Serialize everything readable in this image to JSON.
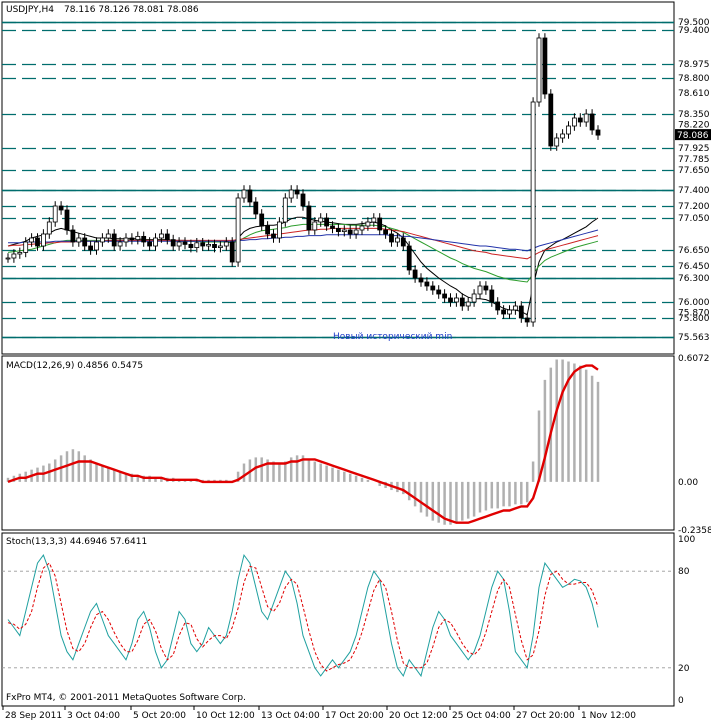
{
  "header": {
    "symbol": "USDJPY,H4",
    "ohlc": "78.116 78.126 78.081 78.086"
  },
  "annotation": "Новый исторический min",
  "footer": "FxPro MT4, © 2001-2011 MetaQuotes Software Corp.",
  "colors": {
    "level_line": "#006d6d",
    "candle": "#000000",
    "ma_fast": "#000000",
    "ma_green": "#2e9e2e",
    "ma_red": "#cc2222",
    "ma_blue": "#2233aa",
    "macd_hist": "#b0b0b0",
    "macd_signal": "#e00000",
    "stoch_main": "#20a0a0",
    "stoch_signal": "#e00000",
    "annotation": "#1e3cc8",
    "current_price_bg": "#000000"
  },
  "chart_data": [
    {
      "type": "line",
      "panel": "price",
      "title": "USDJPY,H4",
      "ylim": [
        75.4,
        79.6
      ],
      "price_levels": [
        79.5,
        79.4,
        78.975,
        78.8,
        78.35,
        77.925,
        77.65,
        77.4,
        77.2,
        77.05,
        76.65,
        76.45,
        76.3,
        76.0,
        75.8,
        75.563
      ],
      "y_tick_labels": [
        "79.500",
        "79.400",
        "78.975",
        "78.800",
        "78.610",
        "78.350",
        "78.220",
        "78.086",
        "77.925",
        "77.785",
        "77.650",
        "77.400",
        "77.200",
        "77.050",
        "76.650",
        "76.450",
        "76.300",
        "76.000",
        "75.870",
        "75.800",
        "75.563"
      ],
      "current_price": "78.086",
      "closes": [
        76.55,
        76.6,
        76.62,
        76.75,
        76.8,
        76.7,
        76.85,
        77.0,
        77.2,
        77.15,
        76.9,
        76.75,
        76.8,
        76.7,
        76.65,
        76.75,
        76.8,
        76.85,
        76.7,
        76.75,
        76.8,
        76.78,
        76.82,
        76.75,
        76.7,
        76.8,
        76.85,
        76.78,
        76.7,
        76.75,
        76.72,
        76.68,
        76.74,
        76.7,
        76.72,
        76.68,
        76.7,
        76.75,
        76.5,
        77.3,
        77.4,
        77.25,
        77.1,
        76.95,
        76.85,
        76.8,
        77.0,
        77.3,
        77.4,
        77.35,
        77.2,
        76.9,
        77.0,
        77.05,
        76.95,
        76.92,
        76.88,
        76.9,
        76.85,
        76.9,
        76.95,
        77.0,
        77.05,
        76.9,
        76.85,
        76.75,
        76.8,
        76.7,
        76.4,
        76.3,
        76.25,
        76.2,
        76.15,
        76.1,
        76.05,
        76.0,
        76.05,
        75.95,
        76.0,
        76.1,
        76.2,
        76.15,
        76.0,
        75.9,
        75.85,
        75.9,
        75.95,
        75.8,
        75.75,
        78.5,
        79.3,
        78.6,
        77.95,
        78.05,
        78.1,
        78.2,
        78.3,
        78.25,
        78.35,
        78.15,
        78.086
      ],
      "series": [
        {
          "name": "MA fast",
          "values": [
            76.7,
            76.72,
            76.74,
            76.76,
            76.8,
            76.82,
            76.84,
            76.86,
            76.9,
            76.92,
            76.9,
            76.88,
            76.86,
            76.84,
            76.82,
            76.8,
            76.8,
            76.8,
            76.79,
            76.79,
            76.79,
            76.79,
            76.79,
            76.78,
            76.78,
            76.78,
            76.78,
            76.78,
            76.77,
            76.77,
            76.77,
            76.76,
            76.76,
            76.76,
            76.75,
            76.75,
            76.75,
            76.75,
            76.74,
            76.8,
            76.88,
            76.92,
            76.94,
            76.95,
            76.96,
            76.96,
            76.97,
            77.0,
            77.04,
            77.06,
            77.06,
            77.04,
            77.02,
            77.01,
            77.0,
            76.99,
            76.98,
            76.97,
            76.97,
            76.97,
            76.98,
            76.99,
            77.0,
            76.98,
            76.95,
            76.9,
            76.86,
            76.8,
            76.7,
            76.6,
            76.5,
            76.42,
            76.36,
            76.3,
            76.25,
            76.2,
            76.16,
            76.1,
            76.06,
            76.04,
            76.04,
            76.03,
            76.0,
            75.96,
            75.92,
            75.9,
            75.9,
            75.88,
            75.84,
            76.2,
            76.5,
            76.65,
            76.7,
            76.75,
            76.78,
            76.82,
            76.86,
            76.9,
            76.94,
            77.0,
            77.05
          ]
        },
        {
          "name": "MA green",
          "values": [
            76.62,
            76.63,
            76.64,
            76.65,
            76.66,
            76.68,
            76.7,
            76.72,
            76.74,
            76.76,
            76.77,
            76.77,
            76.77,
            76.77,
            76.77,
            76.77,
            76.77,
            76.77,
            76.77,
            76.77,
            76.77,
            76.77,
            76.77,
            76.77,
            76.77,
            76.77,
            76.77,
            76.77,
            76.77,
            76.76,
            76.76,
            76.76,
            76.76,
            76.75,
            76.75,
            76.75,
            76.75,
            76.75,
            76.74,
            76.76,
            76.8,
            76.84,
            76.87,
            76.89,
            76.9,
            76.91,
            76.92,
            76.93,
            76.95,
            76.96,
            76.97,
            76.97,
            76.97,
            76.97,
            76.97,
            76.97,
            76.97,
            76.97,
            76.96,
            76.96,
            76.96,
            76.96,
            76.96,
            76.95,
            76.94,
            76.92,
            76.9,
            76.87,
            76.83,
            76.79,
            76.75,
            76.71,
            76.67,
            76.63,
            76.59,
            76.55,
            76.52,
            76.48,
            76.45,
            76.42,
            76.4,
            76.38,
            76.35,
            76.32,
            76.3,
            76.28,
            76.27,
            76.26,
            76.25,
            76.35,
            76.45,
            76.52,
            76.56,
            76.59,
            76.62,
            76.65,
            76.68,
            76.7,
            76.72,
            76.74,
            76.76
          ]
        },
        {
          "name": "MA red",
          "values": [
            76.7,
            76.71,
            76.71,
            76.72,
            76.72,
            76.73,
            76.73,
            76.74,
            76.74,
            76.75,
            76.75,
            76.75,
            76.76,
            76.76,
            76.76,
            76.76,
            76.76,
            76.77,
            76.77,
            76.77,
            76.77,
            76.77,
            76.77,
            76.77,
            76.77,
            76.77,
            76.77,
            76.77,
            76.77,
            76.77,
            76.77,
            76.77,
            76.77,
            76.77,
            76.77,
            76.77,
            76.77,
            76.77,
            76.77,
            76.78,
            76.79,
            76.8,
            76.81,
            76.82,
            76.83,
            76.84,
            76.85,
            76.86,
            76.87,
            76.88,
            76.89,
            76.9,
            76.9,
            76.91,
            76.91,
            76.92,
            76.92,
            76.92,
            76.92,
            76.92,
            76.92,
            76.92,
            76.92,
            76.92,
            76.91,
            76.9,
            76.89,
            76.88,
            76.86,
            76.84,
            76.82,
            76.8,
            76.78,
            76.76,
            76.74,
            76.72,
            76.7,
            76.68,
            76.66,
            76.64,
            76.63,
            76.62,
            76.6,
            76.59,
            76.58,
            76.57,
            76.56,
            76.55,
            76.54,
            76.58,
            76.62,
            76.65,
            76.67,
            76.69,
            76.71,
            76.73,
            76.75,
            76.77,
            76.79,
            76.81,
            76.83
          ]
        },
        {
          "name": "MA blue",
          "values": [
            76.74,
            76.74,
            76.74,
            76.75,
            76.75,
            76.75,
            76.75,
            76.75,
            76.76,
            76.76,
            76.76,
            76.76,
            76.76,
            76.76,
            76.76,
            76.76,
            76.76,
            76.76,
            76.76,
            76.76,
            76.76,
            76.76,
            76.76,
            76.76,
            76.76,
            76.76,
            76.76,
            76.76,
            76.76,
            76.76,
            76.76,
            76.76,
            76.76,
            76.76,
            76.76,
            76.76,
            76.76,
            76.76,
            76.76,
            76.77,
            76.77,
            76.78,
            76.78,
            76.79,
            76.79,
            76.8,
            76.8,
            76.81,
            76.81,
            76.82,
            76.82,
            76.83,
            76.83,
            76.83,
            76.84,
            76.84,
            76.84,
            76.84,
            76.84,
            76.84,
            76.84,
            76.84,
            76.84,
            76.84,
            76.84,
            76.83,
            76.83,
            76.82,
            76.82,
            76.81,
            76.8,
            76.79,
            76.78,
            76.77,
            76.76,
            76.75,
            76.74,
            76.73,
            76.72,
            76.71,
            76.7,
            76.7,
            76.69,
            76.68,
            76.67,
            76.66,
            76.66,
            76.65,
            76.64,
            76.67,
            76.7,
            76.72,
            76.74,
            76.76,
            76.78,
            76.8,
            76.82,
            76.84,
            76.86,
            76.88,
            76.9
          ]
        }
      ]
    },
    {
      "type": "bar",
      "panel": "macd",
      "title": "MACD(12,26,9) 0.4856 0.5475",
      "ylim": [
        -0.2358,
        0.6072
      ],
      "y_tick_labels": [
        "0.6072",
        "0.00",
        "-0.2358"
      ],
      "histogram": [
        0.02,
        0.03,
        0.04,
        0.05,
        0.06,
        0.07,
        0.08,
        0.09,
        0.11,
        0.13,
        0.15,
        0.16,
        0.15,
        0.13,
        0.11,
        0.09,
        0.08,
        0.07,
        0.06,
        0.05,
        0.04,
        0.04,
        0.03,
        0.03,
        0.03,
        0.02,
        0.02,
        0.02,
        0.02,
        0.01,
        0.01,
        0.01,
        0.01,
        0.01,
        0.01,
        0.01,
        0.01,
        0.01,
        0.0,
        0.05,
        0.09,
        0.11,
        0.12,
        0.12,
        0.11,
        0.1,
        0.09,
        0.1,
        0.12,
        0.13,
        0.13,
        0.11,
        0.1,
        0.09,
        0.08,
        0.07,
        0.06,
        0.05,
        0.04,
        0.03,
        0.02,
        0.01,
        0.0,
        -0.02,
        -0.03,
        -0.04,
        -0.05,
        -0.06,
        -0.09,
        -0.12,
        -0.15,
        -0.17,
        -0.19,
        -0.2,
        -0.21,
        -0.21,
        -0.2,
        -0.19,
        -0.18,
        -0.17,
        -0.15,
        -0.14,
        -0.13,
        -0.13,
        -0.12,
        -0.12,
        -0.11,
        -0.11,
        -0.1,
        0.1,
        0.35,
        0.5,
        0.56,
        0.6,
        0.6,
        0.59,
        0.58,
        0.57,
        0.55,
        0.52,
        0.49
      ],
      "signal": [
        0.0,
        0.01,
        0.02,
        0.02,
        0.03,
        0.04,
        0.04,
        0.05,
        0.06,
        0.07,
        0.08,
        0.09,
        0.1,
        0.1,
        0.1,
        0.09,
        0.08,
        0.07,
        0.06,
        0.05,
        0.04,
        0.03,
        0.03,
        0.02,
        0.02,
        0.02,
        0.02,
        0.01,
        0.01,
        0.01,
        0.01,
        0.01,
        0.01,
        0.0,
        0.0,
        0.0,
        0.0,
        0.0,
        0.0,
        0.01,
        0.03,
        0.05,
        0.07,
        0.08,
        0.09,
        0.09,
        0.09,
        0.09,
        0.1,
        0.1,
        0.11,
        0.11,
        0.11,
        0.1,
        0.09,
        0.08,
        0.07,
        0.06,
        0.05,
        0.04,
        0.03,
        0.02,
        0.01,
        0.0,
        -0.01,
        -0.02,
        -0.03,
        -0.04,
        -0.06,
        -0.08,
        -0.1,
        -0.12,
        -0.14,
        -0.16,
        -0.18,
        -0.19,
        -0.2,
        -0.2,
        -0.2,
        -0.19,
        -0.18,
        -0.17,
        -0.16,
        -0.15,
        -0.14,
        -0.14,
        -0.13,
        -0.12,
        -0.12,
        -0.08,
        0.01,
        0.12,
        0.24,
        0.35,
        0.44,
        0.5,
        0.54,
        0.56,
        0.57,
        0.57,
        0.55
      ]
    },
    {
      "type": "line",
      "panel": "stoch",
      "title": "Stoch(13,3,3) 44.6946 57.6411",
      "ylim": [
        0,
        100
      ],
      "y_tick_labels": [
        "100",
        "80",
        "20",
        "0"
      ],
      "levels": [
        80,
        20
      ],
      "series": [
        {
          "name": "main",
          "values": [
            50,
            45,
            40,
            55,
            70,
            85,
            90,
            80,
            60,
            40,
            30,
            25,
            35,
            45,
            55,
            60,
            50,
            40,
            35,
            30,
            25,
            35,
            50,
            55,
            45,
            30,
            20,
            25,
            40,
            55,
            50,
            35,
            30,
            35,
            45,
            40,
            35,
            40,
            55,
            75,
            90,
            85,
            70,
            55,
            50,
            60,
            70,
            80,
            75,
            60,
            40,
            30,
            20,
            15,
            20,
            25,
            20,
            25,
            30,
            40,
            55,
            70,
            80,
            75,
            55,
            35,
            20,
            15,
            25,
            20,
            15,
            30,
            45,
            55,
            50,
            40,
            35,
            30,
            25,
            30,
            40,
            55,
            70,
            80,
            75,
            55,
            30,
            25,
            20,
            40,
            70,
            85,
            80,
            75,
            70,
            72,
            75,
            74,
            70,
            60,
            45
          ]
        },
        {
          "name": "signal",
          "values": [
            48,
            47,
            44,
            47,
            55,
            70,
            82,
            85,
            77,
            60,
            43,
            32,
            30,
            35,
            45,
            53,
            55,
            50,
            42,
            35,
            30,
            30,
            37,
            47,
            50,
            43,
            32,
            25,
            28,
            40,
            48,
            47,
            38,
            33,
            37,
            40,
            40,
            38,
            45,
            57,
            73,
            83,
            82,
            70,
            58,
            55,
            60,
            70,
            75,
            72,
            58,
            43,
            30,
            22,
            18,
            20,
            22,
            23,
            25,
            32,
            42,
            55,
            68,
            75,
            70,
            55,
            37,
            23,
            20,
            20,
            20,
            23,
            33,
            45,
            50,
            48,
            42,
            35,
            30,
            28,
            32,
            42,
            55,
            68,
            75,
            70,
            53,
            37,
            25,
            28,
            43,
            65,
            78,
            80,
            75,
            72,
            72,
            73,
            73,
            68,
            58
          ]
        }
      ]
    }
  ],
  "x_tick_labels": [
    "28 Sep 2011",
    "3 Oct 04:00",
    "5 Oct 20:00",
    "10 Oct 12:00",
    "13 Oct 04:00",
    "17 Oct 20:00",
    "20 Oct 12:00",
    "25 Oct 04:00",
    "27 Oct 20:00",
    "1 Nov 12:00"
  ]
}
